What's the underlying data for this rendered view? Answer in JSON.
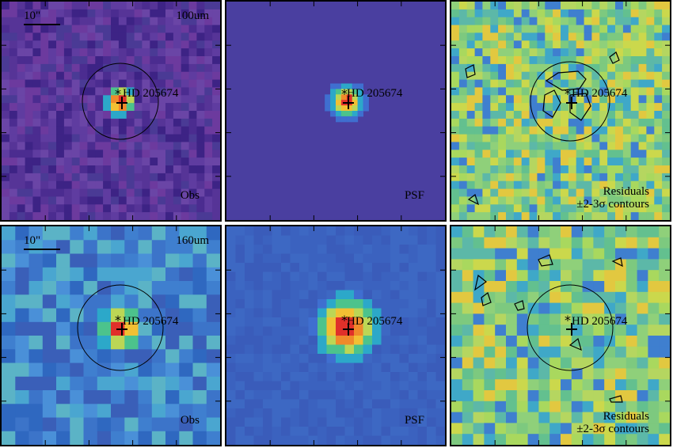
{
  "target_name": "HD 205674",
  "rows": [
    {
      "band": "100um",
      "scale_label": "10\""
    },
    {
      "band": "160um",
      "scale_label": "10\""
    }
  ],
  "panel_labels": {
    "obs": "Obs",
    "psf": "PSF",
    "residuals_line1": "Residuals",
    "residuals_line2": "±2-3σ contours"
  },
  "colors": {
    "obs_100_bg": "#5b3c9a",
    "psf_100_bg": "#4a3fa0",
    "res_bg": "#8fcf7a",
    "obs_160_bg": "#3f7fc7",
    "psf_160_bg": "#3a66c0",
    "peak": "#e8402a"
  }
}
